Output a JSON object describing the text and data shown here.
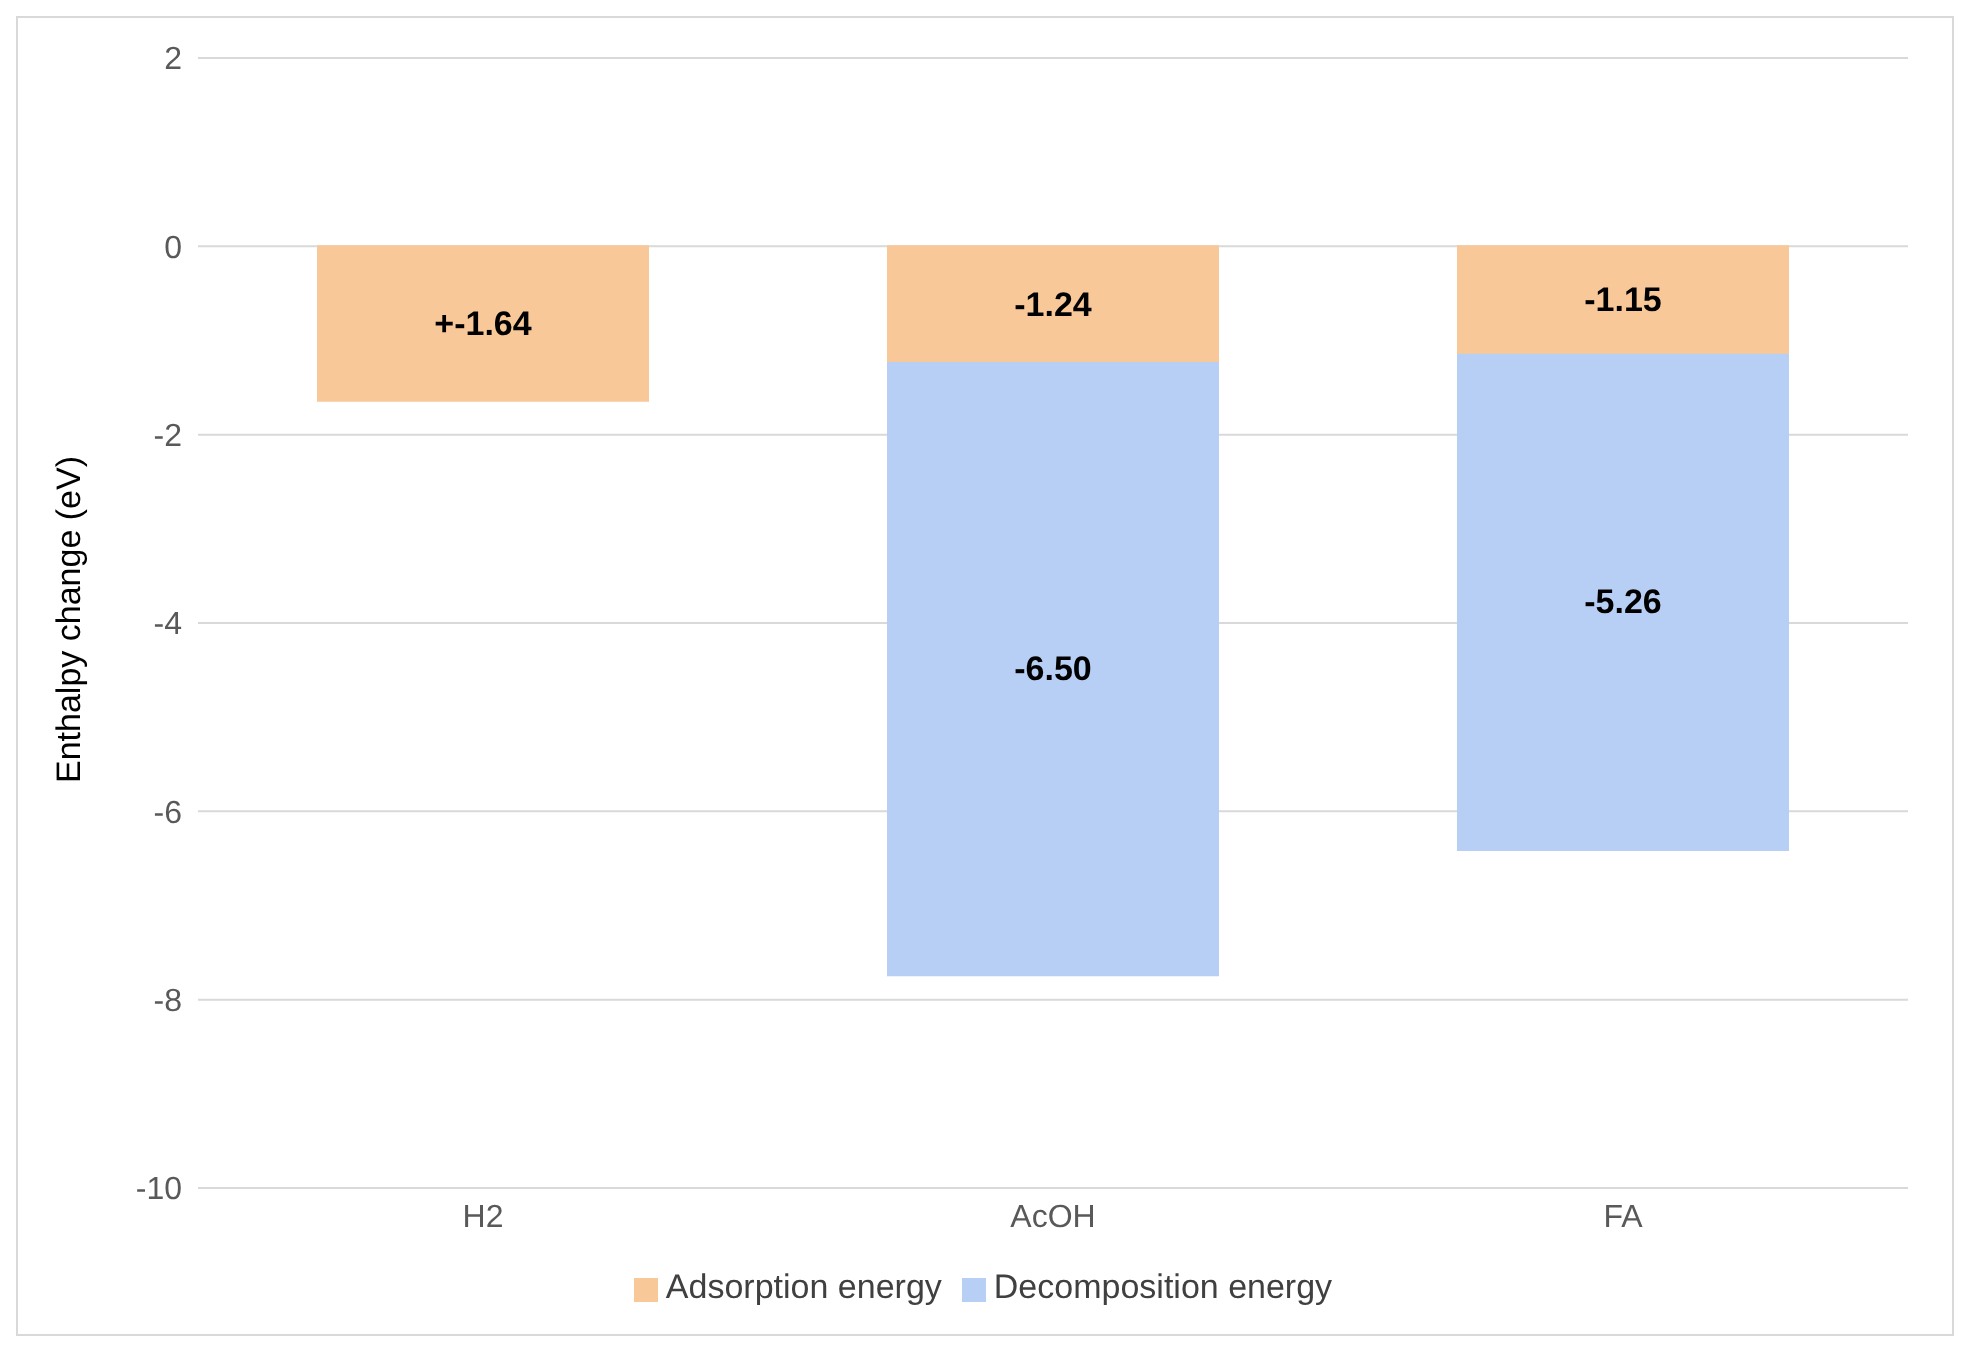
{
  "chart_data": {
    "type": "bar",
    "stacked": true,
    "ylabel": "Enthalpy change (eV)",
    "categories": [
      "H2",
      "AcOH",
      "FA"
    ],
    "series": [
      {
        "name": "Adsorption energy",
        "color": "#f9c899",
        "values": [
          -1.64,
          -1.24,
          -1.15
        ],
        "value_labels": [
          "+-1.64",
          "-1.24",
          "-1.15"
        ]
      },
      {
        "name": "Decomposition energy",
        "color": "#b7cff5",
        "values": [
          null,
          -6.5,
          -5.26
        ],
        "value_labels": [
          null,
          "-6.50",
          "-5.26"
        ]
      }
    ],
    "ylim": [
      -10,
      2
    ],
    "yticks": [
      -10,
      -8,
      -6,
      -4,
      -2,
      0,
      2
    ],
    "grid": "y",
    "legend": "bottom"
  }
}
